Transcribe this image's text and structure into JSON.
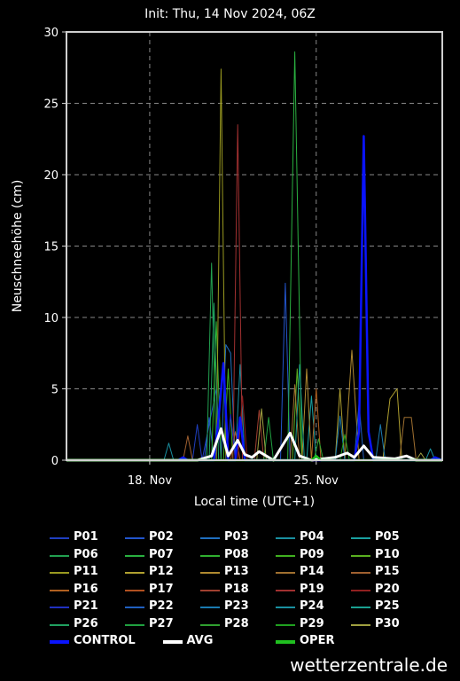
{
  "chart_data": {
    "type": "line",
    "title": "Init: Thu, 14 Nov 2024, 06Z",
    "xlabel": "Local time (UTC+1)",
    "ylabel": "Neuschneehöhe (cm)",
    "x_range_days": [
      14.5,
      30.3
    ],
    "x_ticks": [
      {
        "day": 18,
        "label": "18. Nov"
      },
      {
        "day": 25,
        "label": "25. Nov"
      }
    ],
    "ylim": [
      0,
      30
    ],
    "y_ticks": [
      0,
      5,
      10,
      15,
      20,
      25,
      30
    ],
    "grid": true,
    "series": [
      {
        "name": "P01",
        "color": "#1f3fbf",
        "width": 1,
        "points": [
          [
            14.5,
            0
          ],
          [
            19.8,
            0
          ],
          [
            20.0,
            2.5
          ],
          [
            20.2,
            0
          ],
          [
            20.8,
            5
          ],
          [
            21.0,
            0
          ],
          [
            30.3,
            0
          ]
        ]
      },
      {
        "name": "P02",
        "color": "#2255cc",
        "width": 1,
        "points": [
          [
            14.5,
            0
          ],
          [
            20.3,
            0
          ],
          [
            20.5,
            3
          ],
          [
            20.7,
            0
          ],
          [
            23.5,
            0
          ],
          [
            23.7,
            12.4
          ],
          [
            23.9,
            0
          ],
          [
            30.3,
            0
          ]
        ]
      },
      {
        "name": "P03",
        "color": "#1f6fbf",
        "width": 1,
        "points": [
          [
            14.5,
            0
          ],
          [
            21.0,
            0
          ],
          [
            21.2,
            8.1
          ],
          [
            21.4,
            7.5
          ],
          [
            21.6,
            0
          ],
          [
            30.3,
            0
          ]
        ]
      },
      {
        "name": "P04",
        "color": "#1a8fa0",
        "width": 1,
        "points": [
          [
            14.5,
            0
          ],
          [
            18.6,
            0
          ],
          [
            18.8,
            1.2
          ],
          [
            19.0,
            0
          ],
          [
            21.6,
            0
          ],
          [
            21.8,
            6.7
          ],
          [
            22.0,
            0
          ],
          [
            30.3,
            0
          ]
        ]
      },
      {
        "name": "P05",
        "color": "#1aa0a0",
        "width": 1,
        "points": [
          [
            14.5,
            0
          ],
          [
            24.6,
            0
          ],
          [
            24.8,
            4.5
          ],
          [
            25.0,
            0
          ],
          [
            30.3,
            0
          ]
        ]
      },
      {
        "name": "P06",
        "color": "#22a050",
        "width": 1,
        "points": [
          [
            14.5,
            0
          ],
          [
            20.4,
            0
          ],
          [
            20.6,
            13.8
          ],
          [
            20.8,
            0
          ],
          [
            30.3,
            0
          ]
        ]
      },
      {
        "name": "P07",
        "color": "#2ab040",
        "width": 1,
        "points": [
          [
            14.5,
            0
          ],
          [
            23.8,
            0
          ],
          [
            24.1,
            28.6
          ],
          [
            24.4,
            0
          ],
          [
            30.3,
            0
          ]
        ]
      },
      {
        "name": "P08",
        "color": "#30b030",
        "width": 1,
        "points": [
          [
            14.5,
            0
          ],
          [
            20.6,
            0
          ],
          [
            20.8,
            9.7
          ],
          [
            21.0,
            0
          ],
          [
            30.3,
            0
          ]
        ]
      },
      {
        "name": "P09",
        "color": "#40b020",
        "width": 1,
        "points": [
          [
            14.5,
            0
          ],
          [
            21.1,
            0
          ],
          [
            21.3,
            6.4
          ],
          [
            21.5,
            0
          ],
          [
            30.3,
            0
          ]
        ]
      },
      {
        "name": "P10",
        "color": "#5ab020",
        "width": 1,
        "points": [
          [
            14.5,
            0
          ],
          [
            24.0,
            0
          ],
          [
            24.2,
            6.4
          ],
          [
            24.4,
            0
          ],
          [
            30.3,
            0
          ]
        ]
      },
      {
        "name": "P11",
        "color": "#9a9a20",
        "width": 1,
        "points": [
          [
            14.5,
            0
          ],
          [
            20.8,
            0
          ],
          [
            21.0,
            27.4
          ],
          [
            21.2,
            0
          ],
          [
            30.3,
            0
          ]
        ]
      },
      {
        "name": "P12",
        "color": "#b0a030",
        "width": 1,
        "points": [
          [
            14.5,
            0
          ],
          [
            25.8,
            0
          ],
          [
            26.0,
            5
          ],
          [
            26.2,
            0
          ],
          [
            27.8,
            0
          ],
          [
            28.1,
            4.3
          ],
          [
            28.4,
            5.0
          ],
          [
            28.6,
            0
          ],
          [
            30.3,
            0
          ]
        ]
      },
      {
        "name": "P13",
        "color": "#b08a30",
        "width": 1,
        "points": [
          [
            14.5,
            0
          ],
          [
            24.4,
            0
          ],
          [
            24.6,
            6.4
          ],
          [
            24.8,
            0
          ],
          [
            26.2,
            0
          ],
          [
            26.5,
            7.7
          ],
          [
            26.8,
            0
          ],
          [
            30.3,
            0
          ]
        ]
      },
      {
        "name": "P14",
        "color": "#a07030",
        "width": 1,
        "points": [
          [
            14.5,
            0
          ],
          [
            23.9,
            0
          ],
          [
            24.1,
            5.3
          ],
          [
            24.3,
            0
          ],
          [
            28.5,
            0
          ],
          [
            28.7,
            3.0
          ],
          [
            29.0,
            3.0
          ],
          [
            29.2,
            0
          ],
          [
            30.3,
            0
          ]
        ]
      },
      {
        "name": "P15",
        "color": "#a06030",
        "width": 1,
        "points": [
          [
            14.5,
            0
          ],
          [
            19.4,
            0
          ],
          [
            19.6,
            1.7
          ],
          [
            19.8,
            0
          ],
          [
            30.3,
            0
          ]
        ]
      },
      {
        "name": "P16",
        "color": "#b06020",
        "width": 1,
        "points": [
          [
            14.5,
            0
          ],
          [
            24.8,
            0
          ],
          [
            25.0,
            5
          ],
          [
            25.2,
            0
          ],
          [
            30.3,
            0
          ]
        ]
      },
      {
        "name": "P17",
        "color": "#b05020",
        "width": 1,
        "points": [
          [
            14.5,
            0
          ],
          [
            21.4,
            0
          ],
          [
            21.6,
            2
          ],
          [
            21.8,
            0
          ],
          [
            30.3,
            0
          ]
        ]
      },
      {
        "name": "P18",
        "color": "#a04030",
        "width": 1,
        "points": [
          [
            14.5,
            0
          ],
          [
            22.4,
            0
          ],
          [
            22.6,
            3.5
          ],
          [
            22.8,
            0
          ],
          [
            30.3,
            0
          ]
        ]
      },
      {
        "name": "P19",
        "color": "#a03030",
        "width": 1,
        "points": [
          [
            14.5,
            0
          ],
          [
            21.5,
            0
          ],
          [
            21.7,
            23.5
          ],
          [
            21.9,
            0
          ],
          [
            30.3,
            0
          ]
        ]
      },
      {
        "name": "P20",
        "color": "#902020",
        "width": 1,
        "points": [
          [
            14.5,
            0
          ],
          [
            21.7,
            0
          ],
          [
            21.9,
            4.5
          ],
          [
            22.1,
            0
          ],
          [
            30.3,
            0
          ]
        ]
      },
      {
        "name": "P21",
        "color": "#2030c0",
        "width": 1,
        "points": [
          [
            14.5,
            0
          ],
          [
            21.2,
            0
          ],
          [
            21.4,
            3.2
          ],
          [
            21.6,
            0
          ],
          [
            30.3,
            0
          ]
        ]
      },
      {
        "name": "P22",
        "color": "#2060c0",
        "width": 1,
        "points": [
          [
            14.5,
            0
          ],
          [
            26.6,
            0
          ],
          [
            26.8,
            4
          ],
          [
            27.0,
            0
          ],
          [
            30.3,
            0
          ]
        ]
      },
      {
        "name": "P23",
        "color": "#1a7ab0",
        "width": 1,
        "points": [
          [
            14.5,
            0
          ],
          [
            25.8,
            0
          ],
          [
            26.0,
            3.1
          ],
          [
            26.2,
            0
          ],
          [
            27.5,
            0
          ],
          [
            27.7,
            2.5
          ],
          [
            27.9,
            0
          ],
          [
            30.3,
            0
          ]
        ]
      },
      {
        "name": "P24",
        "color": "#1a90a0",
        "width": 1,
        "points": [
          [
            14.5,
            0
          ],
          [
            29.6,
            0
          ],
          [
            29.8,
            0.8
          ],
          [
            30.0,
            0
          ],
          [
            30.3,
            0
          ]
        ]
      },
      {
        "name": "P25",
        "color": "#1aa090",
        "width": 1,
        "points": [
          [
            14.5,
            0
          ],
          [
            24.1,
            0
          ],
          [
            24.3,
            6.7
          ],
          [
            24.5,
            0
          ],
          [
            30.3,
            0
          ]
        ]
      },
      {
        "name": "P26",
        "color": "#20a060",
        "width": 1,
        "points": [
          [
            14.5,
            0
          ],
          [
            20.5,
            0
          ],
          [
            20.7,
            11
          ],
          [
            20.9,
            0
          ],
          [
            30.3,
            0
          ]
        ]
      },
      {
        "name": "P27",
        "color": "#20a040",
        "width": 1,
        "points": [
          [
            14.5,
            0
          ],
          [
            22.8,
            0
          ],
          [
            23.0,
            3
          ],
          [
            23.2,
            0
          ],
          [
            30.3,
            0
          ]
        ]
      },
      {
        "name": "P28",
        "color": "#30a030",
        "width": 1,
        "points": [
          [
            14.5,
            0
          ],
          [
            24.9,
            0
          ],
          [
            25.1,
            1.5
          ],
          [
            25.3,
            0
          ],
          [
            30.3,
            0
          ]
        ]
      },
      {
        "name": "P29",
        "color": "#20a020",
        "width": 1,
        "points": [
          [
            14.5,
            0
          ],
          [
            26.0,
            0
          ],
          [
            26.2,
            1.8
          ],
          [
            26.4,
            0
          ],
          [
            30.3,
            0
          ]
        ]
      },
      {
        "name": "P30",
        "color": "#a0a040",
        "width": 1,
        "points": [
          [
            14.5,
            0
          ],
          [
            22.5,
            0
          ],
          [
            22.7,
            3.6
          ],
          [
            22.9,
            0
          ],
          [
            29.2,
            0
          ],
          [
            29.4,
            0.5
          ],
          [
            29.6,
            0
          ],
          [
            30.3,
            0
          ]
        ]
      },
      {
        "name": "CONTROL",
        "color": "#0a14ff",
        "width": 2.5,
        "points": [
          [
            14.5,
            0
          ],
          [
            19.2,
            0
          ],
          [
            19.4,
            0.2
          ],
          [
            19.6,
            0
          ],
          [
            20.7,
            0
          ],
          [
            20.9,
            3.0
          ],
          [
            21.1,
            6.8
          ],
          [
            21.3,
            0
          ],
          [
            21.6,
            0
          ],
          [
            21.8,
            3.0
          ],
          [
            22.0,
            0
          ],
          [
            26.6,
            0
          ],
          [
            26.8,
            2
          ],
          [
            27.0,
            22.7
          ],
          [
            27.2,
            2
          ],
          [
            27.4,
            0
          ],
          [
            29.8,
            0
          ],
          [
            30.0,
            0.2
          ],
          [
            30.3,
            0
          ]
        ]
      },
      {
        "name": "AVG",
        "color": "#ffffff",
        "width": 3,
        "points": [
          [
            14.5,
            0
          ],
          [
            20.0,
            0
          ],
          [
            20.6,
            0.3
          ],
          [
            21.0,
            2.2
          ],
          [
            21.3,
            0.3
          ],
          [
            21.7,
            1.4
          ],
          [
            22.0,
            0.4
          ],
          [
            22.3,
            0.2
          ],
          [
            22.6,
            0.6
          ],
          [
            23.2,
            0
          ],
          [
            23.9,
            1.9
          ],
          [
            24.3,
            0.3
          ],
          [
            24.8,
            0
          ],
          [
            25.8,
            0.2
          ],
          [
            26.3,
            0.5
          ],
          [
            26.6,
            0.2
          ],
          [
            27.0,
            1.0
          ],
          [
            27.4,
            0.2
          ],
          [
            28.3,
            0.1
          ],
          [
            28.8,
            0.3
          ],
          [
            29.2,
            0
          ],
          [
            30.3,
            0
          ]
        ]
      },
      {
        "name": "OPER",
        "color": "#20c020",
        "width": 2.5,
        "points": [
          [
            14.5,
            0
          ],
          [
            24.8,
            0
          ],
          [
            25.0,
            0.3
          ],
          [
            25.2,
            0
          ],
          [
            30.3,
            0
          ]
        ]
      }
    ]
  },
  "watermark": "wetterzentrale.de"
}
